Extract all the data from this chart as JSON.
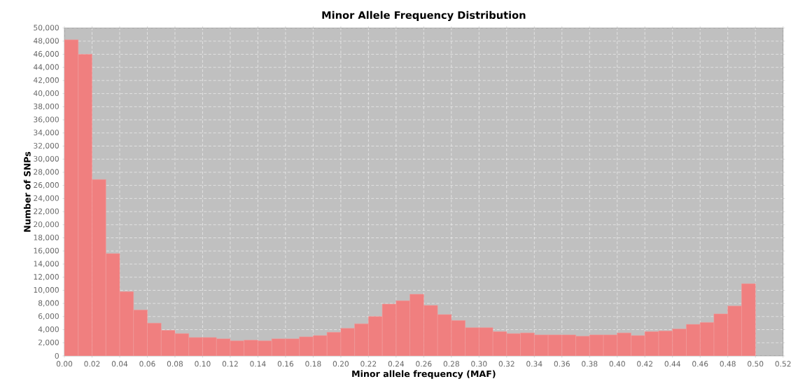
{
  "chart_data": {
    "type": "histogram",
    "title": "Minor Allele Frequency Distribution",
    "xlabel": "Minor allele frequency (MAF)",
    "ylabel": "Number of SNPs",
    "bins": [
      0.0,
      0.01,
      0.02,
      0.03,
      0.04,
      0.05,
      0.06,
      0.07,
      0.08,
      0.09,
      0.1,
      0.11,
      0.12,
      0.13,
      0.14,
      0.15,
      0.16,
      0.17,
      0.18,
      0.19,
      0.2,
      0.21,
      0.22,
      0.23,
      0.24,
      0.25,
      0.26,
      0.27,
      0.28,
      0.29,
      0.3,
      0.31,
      0.32,
      0.33,
      0.34,
      0.35,
      0.36,
      0.37,
      0.38,
      0.39,
      0.4,
      0.41,
      0.42,
      0.43,
      0.44,
      0.45,
      0.46,
      0.47,
      0.48,
      0.49,
      0.5
    ],
    "values": [
      48200,
      46000,
      26900,
      15600,
      9800,
      7000,
      5000,
      3900,
      3400,
      2800,
      2800,
      2600,
      2300,
      2400,
      2300,
      2600,
      2600,
      2900,
      3100,
      3600,
      4200,
      4900,
      6000,
      7900,
      8400,
      9400,
      7700,
      6300,
      5400,
      4300,
      4300,
      3700,
      3400,
      3500,
      3200,
      3200,
      3200,
      3000,
      3200,
      3200,
      3500,
      3100,
      3700,
      3800,
      4100,
      4800,
      5100,
      6400,
      7600,
      11000
    ],
    "color": "#f07f7f",
    "xlim": [
      0,
      0.52
    ],
    "ylim": [
      0,
      50000
    ],
    "xticks": [
      {
        "value": 0,
        "label": "0.00"
      },
      {
        "value": 0.02,
        "label": "0.02"
      },
      {
        "value": 0.04,
        "label": "0.04"
      },
      {
        "value": 0.06,
        "label": "0.06"
      },
      {
        "value": 0.08,
        "label": "0.08"
      },
      {
        "value": 0.1,
        "label": "0.10"
      },
      {
        "value": 0.12,
        "label": "0.12"
      },
      {
        "value": 0.14,
        "label": "0.14"
      },
      {
        "value": 0.16,
        "label": "0.16"
      },
      {
        "value": 0.18,
        "label": "0.18"
      },
      {
        "value": 0.2,
        "label": "0.20"
      },
      {
        "value": 0.22,
        "label": "0.22"
      },
      {
        "value": 0.24,
        "label": "0.24"
      },
      {
        "value": 0.26,
        "label": "0.26"
      },
      {
        "value": 0.28,
        "label": "0.28"
      },
      {
        "value": 0.3,
        "label": "0.30"
      },
      {
        "value": 0.32,
        "label": "0.32"
      },
      {
        "value": 0.34,
        "label": "0.34"
      },
      {
        "value": 0.36,
        "label": "0.36"
      },
      {
        "value": 0.38,
        "label": "0.38"
      },
      {
        "value": 0.4,
        "label": "0.40"
      },
      {
        "value": 0.42,
        "label": "0.42"
      },
      {
        "value": 0.44,
        "label": "0.44"
      },
      {
        "value": 0.46,
        "label": "0.46"
      },
      {
        "value": 0.48,
        "label": "0.48"
      },
      {
        "value": 0.5,
        "label": "0.50"
      },
      {
        "value": 0.52,
        "label": "0.52"
      }
    ],
    "yticks": [
      0,
      {
        "value": 2000,
        "label": "2,000"
      },
      {
        "value": 4000,
        "label": "4,000"
      },
      {
        "value": 6000,
        "label": "6,000"
      },
      {
        "value": 8000,
        "label": "8,000"
      },
      {
        "value": 10000,
        "label": "10,000"
      },
      {
        "value": 12000,
        "label": "12,000"
      },
      {
        "value": 14000,
        "label": "14,000"
      },
      {
        "value": 16000,
        "label": "16,000"
      },
      {
        "value": 18000,
        "label": "18,000"
      },
      {
        "value": 20000,
        "label": "20,000"
      },
      {
        "value": 22000,
        "label": "22,000"
      },
      {
        "value": 24000,
        "label": "24,000"
      },
      {
        "value": 26000,
        "label": "26,000"
      },
      {
        "value": 28000,
        "label": "28,000"
      },
      {
        "value": 30000,
        "label": "30,000"
      },
      {
        "value": 32000,
        "label": "32,000"
      },
      {
        "value": 34000,
        "label": "34,000"
      },
      {
        "value": 36000,
        "label": "36,000"
      },
      {
        "value": 38000,
        "label": "38,000"
      },
      {
        "value": 40000,
        "label": "40,000"
      },
      {
        "value": 42000,
        "label": "42,000"
      },
      {
        "value": 44000,
        "label": "44,000"
      },
      {
        "value": 46000,
        "label": "46,000"
      },
      {
        "value": 48000,
        "label": "48,000"
      },
      {
        "value": 50000,
        "label": "50,000"
      }
    ],
    "grid": true
  }
}
